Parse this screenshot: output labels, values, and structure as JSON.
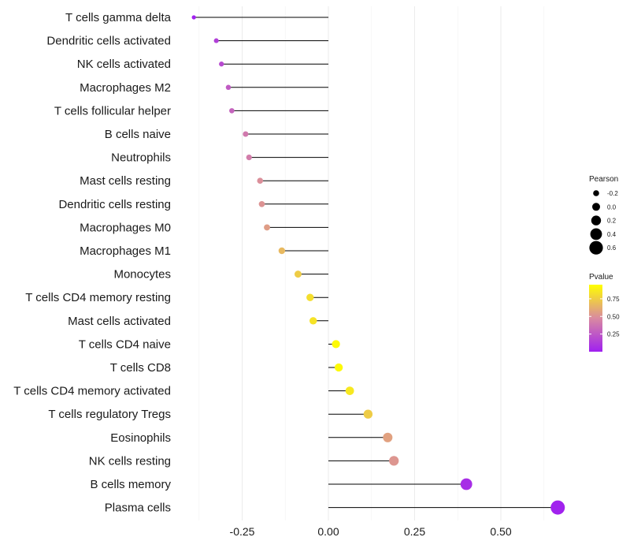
{
  "chart_data": {
    "type": "lollipop",
    "categories": [
      "T cells gamma delta",
      "Dendritic cells activated",
      "NK cells activated",
      "Macrophages M2",
      "T cells follicular helper",
      "B cells naive",
      "Neutrophils",
      "Mast cells resting",
      "Dendritic cells resting",
      "Macrophages M0",
      "Macrophages M1",
      "Monocytes",
      "T cells CD4 memory resting",
      "Mast cells activated",
      "T cells CD4 naive",
      "T cells CD8",
      "T cells CD4 memory activated",
      "T cells regulatory  Tregs ",
      "Eosinophils",
      "NK cells resting",
      "B cells memory",
      "Plasma cells"
    ],
    "values": [
      -0.39,
      -0.325,
      -0.31,
      -0.29,
      -0.28,
      -0.24,
      -0.23,
      -0.198,
      -0.193,
      -0.178,
      -0.135,
      -0.088,
      -0.053,
      -0.044,
      0.022,
      0.03,
      0.062,
      0.115,
      0.172,
      0.19,
      0.4,
      0.665
    ],
    "pvalues": [
      0.01,
      0.15,
      0.2,
      0.28,
      0.32,
      0.42,
      0.44,
      0.52,
      0.54,
      0.58,
      0.7,
      0.78,
      0.86,
      0.88,
      0.98,
      0.98,
      0.9,
      0.78,
      0.6,
      0.55,
      0.06,
      0.01
    ],
    "xlim": [
      -0.45,
      0.71
    ],
    "xticks": [
      -0.25,
      0.0,
      0.25,
      0.5
    ],
    "xtick_labels": [
      "-0.25",
      "0.00",
      "0.25",
      "0.50"
    ],
    "xlabel": "",
    "ylabel": "",
    "grid": true,
    "legend": {
      "size_title": "Pearson",
      "size_breaks": [
        -0.2,
        0.0,
        0.2,
        0.4,
        0.6
      ],
      "size_labels": [
        "-0.2",
        "0.0",
        "0.2",
        "0.4",
        "0.6"
      ],
      "color_title": "Pvalue",
      "color_breaks": [
        0.25,
        0.5,
        0.75
      ],
      "color_labels": [
        "0.25",
        "0.50",
        "0.75"
      ],
      "color_low": "#a020f0",
      "color_mid": "#d98aa0",
      "color_high": "#ffff00",
      "placement": "right"
    }
  }
}
